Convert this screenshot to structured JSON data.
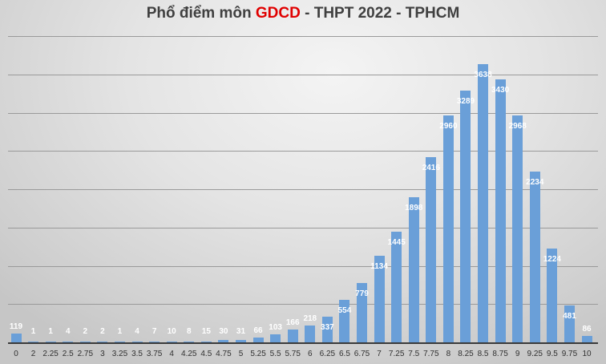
{
  "title": {
    "prefix": "Phổ điểm môn ",
    "highlight": "GDCD",
    "suffix": " - THPT 2022 - TPHCM",
    "highlight_color": "#e00000"
  },
  "colors": {
    "bar": "#6a9fd8",
    "label": "#ffffff",
    "axis_text": "#303030"
  },
  "chart_data": {
    "type": "bar",
    "title": "Phổ điểm môn GDCD - THPT 2022 - TPHCM",
    "xlabel": "",
    "ylabel": "",
    "ylim": [
      0,
      4000
    ],
    "grid": true,
    "gridline_step": 500,
    "legend": "none",
    "data_labels": true,
    "categories": [
      "0",
      "2",
      "2.25",
      "2.5",
      "2.75",
      "3",
      "3.25",
      "3.5",
      "3.75",
      "4",
      "4.25",
      "4.5",
      "4.75",
      "5",
      "5.25",
      "5.5",
      "5.75",
      "6",
      "6.25",
      "6.5",
      "6.75",
      "7",
      "7.25",
      "7.5",
      "7.75",
      "8",
      "8.25",
      "8.5",
      "8.75",
      "9",
      "9.25",
      "9.5",
      "9.75",
      "10"
    ],
    "values": [
      119,
      1,
      1,
      4,
      2,
      2,
      1,
      4,
      7,
      10,
      8,
      15,
      30,
      31,
      66,
      103,
      166,
      218,
      337,
      554,
      779,
      1134,
      1445,
      1898,
      2416,
      2960,
      3289,
      3638,
      3430,
      2968,
      2234,
      1224,
      481,
      86
    ]
  }
}
